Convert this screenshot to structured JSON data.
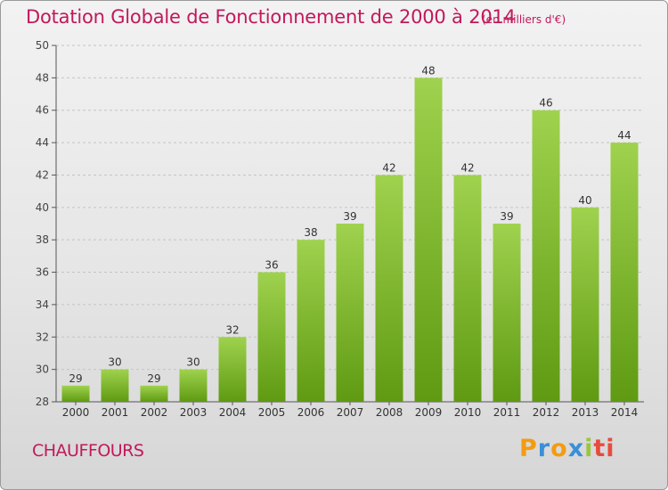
{
  "header": {
    "title": "Dotation Globale de Fonctionnement de 2000 à 2014",
    "unit_note": "(en milliers d'€)"
  },
  "footer": {
    "commune": "CHAUFFOURS",
    "logo_letters": [
      "P",
      "r",
      "o",
      "x",
      "i",
      "ti"
    ]
  },
  "colors": {
    "title": "#c2185b",
    "bar_top": "#9fd24e",
    "bar_bottom": "#5f9a12"
  },
  "chart_data": {
    "type": "bar",
    "title": "Dotation Globale de Fonctionnement de 2000 à 2014",
    "xlabel": "",
    "ylabel": "",
    "categories": [
      "2000",
      "2001",
      "2002",
      "2003",
      "2004",
      "2005",
      "2006",
      "2007",
      "2008",
      "2009",
      "2010",
      "2011",
      "2012",
      "2013",
      "2014"
    ],
    "values": [
      29,
      30,
      29,
      30,
      32,
      36,
      38,
      39,
      42,
      48,
      42,
      39,
      46,
      40,
      44
    ],
    "ylim": [
      28,
      50
    ],
    "yticks": [
      28,
      30,
      32,
      34,
      36,
      38,
      40,
      42,
      44,
      46,
      48,
      50
    ],
    "grid": true
  }
}
